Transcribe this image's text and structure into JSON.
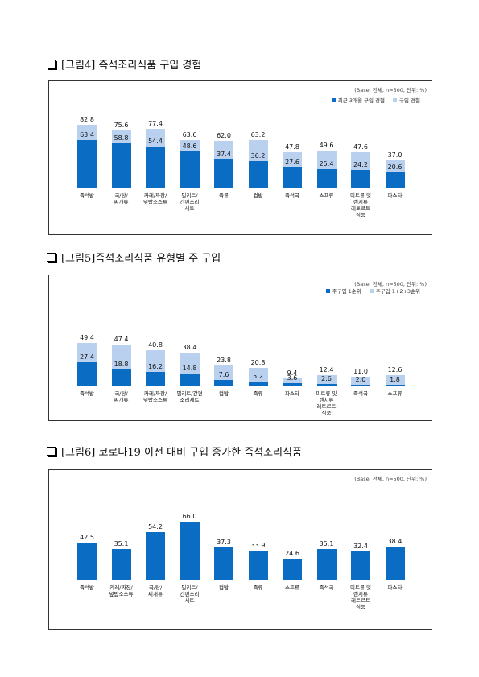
{
  "chart_data": [
    {
      "type": "bar",
      "title": "[그림4] 즉석조리식품 구입 경험",
      "note": "(Base: 전체, n=500, 단위: %)",
      "legend": "top-right",
      "categories": [
        "즉석밥",
        "국/탕/\n찌개류",
        "카레/짜장/\n덮밥소스류",
        "밀키트/\n간편조리\n세트",
        "죽류",
        "컵밥",
        "즉석국",
        "스프류",
        "미트류 및\n렌지류\n레토르트\n식품",
        "파스타"
      ],
      "series": [
        {
          "name": "최근 3개월 구입 경험",
          "color": "#0b6cc4",
          "values": [
            63.4,
            58.8,
            54.4,
            48.6,
            37.4,
            36.2,
            27.6,
            25.4,
            24.2,
            20.6
          ],
          "value_labels": [
            "63.4",
            "58.8",
            "54.4",
            "48.6",
            "37.4",
            "36.2",
            "27.6",
            "25.4",
            "24.2",
            "20.6"
          ]
        },
        {
          "name": "구입 경험",
          "color": "#b9d1ef",
          "values": [
            82.8,
            75.6,
            77.4,
            63.6,
            62.0,
            63.2,
            47.8,
            49.6,
            47.6,
            37.0
          ],
          "value_labels": [
            "82.8",
            "75.6",
            "77.4",
            "63.6",
            "62.0",
            "63.2",
            "47.8",
            "49.6",
            "47.6",
            "37.0"
          ]
        }
      ]
    },
    {
      "type": "bar",
      "title": "[그림5]즉석조리식품 유형별 주 구입",
      "note": "(Base: 전체, n=500, 단위: %)",
      "legend": "top-right",
      "categories": [
        "즉석밥",
        "국/탕/\n찌개류",
        "카레/짜장/\n덮밥소스류",
        "밀키트/간편\n조리세트",
        "컵밥",
        "죽류",
        "파스타",
        "미트류 및\n렌지류\n레토르트\n식품",
        "즉석국",
        "스프류"
      ],
      "series": [
        {
          "name": "주구입 1순위",
          "color": "#0b6cc4",
          "values": [
            27.4,
            18.8,
            16.2,
            14.8,
            7.6,
            5.2,
            3.6,
            2.6,
            2.0,
            1.8
          ],
          "value_labels": [
            "27.4",
            "18.8",
            "16.2",
            "14.8",
            "7.6",
            "5.2",
            "3.6",
            "2.6",
            "2.0",
            "1.8"
          ]
        },
        {
          "name": "주구입 1+2+3순위",
          "color": "#b9d1ef",
          "values": [
            49.4,
            47.4,
            40.8,
            38.4,
            23.8,
            20.8,
            9.4,
            12.4,
            11.0,
            12.6
          ],
          "value_labels": [
            "49.4",
            "47.4",
            "40.8",
            "38.4",
            "23.8",
            "20.8",
            "9.4",
            "12.4",
            "11.0",
            "12.6"
          ]
        }
      ]
    },
    {
      "type": "bar",
      "title": "[그림6] 코로나19 이전 대비 구입 증가한 즉석조리식품",
      "note": "(Base: 전체, n=500, 단위: %)",
      "categories": [
        "즉석밥",
        "카레/짜장/\n덮밥소스류",
        "국/탕/\n찌개류",
        "밀키트/\n간편조리\n세트",
        "컵밥",
        "죽류",
        "스프류",
        "즉석국",
        "미트류 및\n렌지류\n레토르트\n식품",
        "파스타"
      ],
      "color": "#0b6cc4",
      "values": [
        42.5,
        35.1,
        54.2,
        66.0,
        37.3,
        33.9,
        24.6,
        35.1,
        32.4,
        38.4
      ],
      "value_labels": [
        "42.5",
        "35.1",
        "54.2",
        "66.0",
        "37.3",
        "33.9",
        "24.6",
        "35.1",
        "32.4",
        "38.4"
      ]
    }
  ]
}
